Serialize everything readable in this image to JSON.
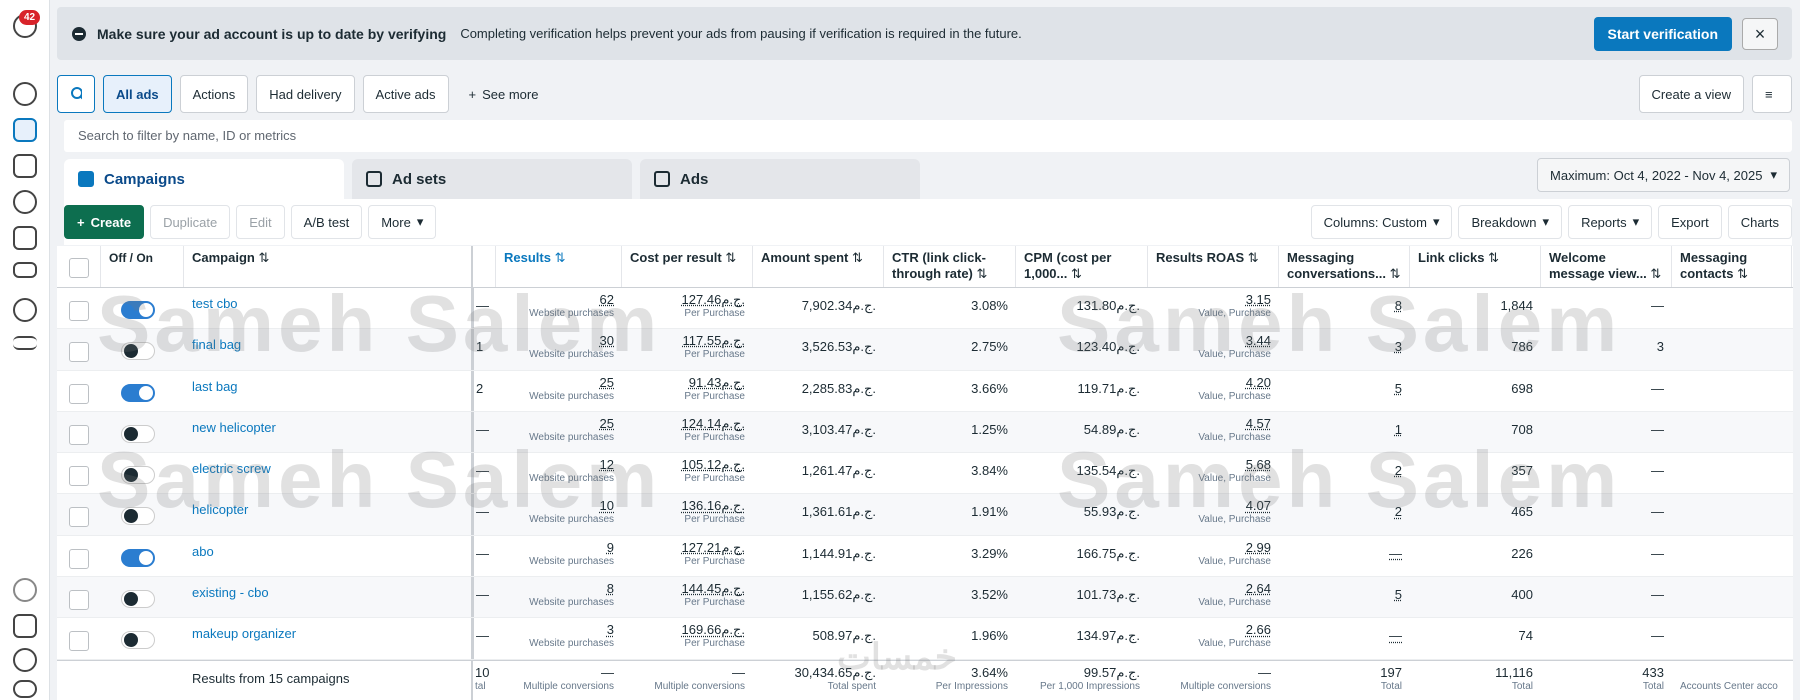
{
  "sidebar": {
    "badge": "42"
  },
  "banner": {
    "title": "Make sure your ad account is up to date by verifying",
    "text": "Completing verification helps prevent your ads from pausing if verification is required in the future.",
    "button": "Start verification"
  },
  "toolbar": {
    "filters": [
      "All ads",
      "Actions",
      "Had delivery",
      "Active ads"
    ],
    "see_more": "See more",
    "create_view": "Create a view"
  },
  "search": {
    "placeholder": "Search to filter by name, ID or metrics"
  },
  "tabs": [
    "Campaigns",
    "Ad sets",
    "Ads"
  ],
  "date_range": "Maximum: Oct 4, 2022 - Nov 4, 2025",
  "actions": {
    "left": [
      "Create",
      "Duplicate",
      "Edit",
      "A/B test",
      "More"
    ],
    "right": [
      "Columns: Custom",
      "Breakdown",
      "Reports",
      "Export",
      "Charts"
    ]
  },
  "watermark": "Sameh Salem",
  "watermark2": "خمسات",
  "table": {
    "headers": [
      "Off / On",
      "Campaign",
      "Results",
      "Cost per result",
      "Amount spent",
      "CTR (link click-through rate)",
      "CPM (cost per 1,000...",
      "Results ROAS",
      "Messaging conversations...",
      "Link clicks",
      "Welcome message view...",
      "Messaging contacts"
    ],
    "result_label": "Website purchases",
    "cost_label": "Per Purchase",
    "roas_label": "Value, Purchase",
    "rows": [
      {
        "name": "test cbo",
        "on": true,
        "cells": [
          "—",
          "62",
          "127.46ج.م.",
          "7,902.34ج.م.",
          "3.08%",
          "131.80ج.م.",
          "3.15",
          "8",
          "1,844",
          "—"
        ]
      },
      {
        "name": "final bag",
        "on": false,
        "cells": [
          "1",
          "30",
          "117.55ج.م.",
          "3,526.53ج.م.",
          "2.75%",
          "123.40ج.م.",
          "3.44",
          "3",
          "786",
          "3"
        ]
      },
      {
        "name": "last bag",
        "on": true,
        "cells": [
          "2",
          "25",
          "91.43ج.م.",
          "2,285.83ج.م.",
          "3.66%",
          "119.71ج.م.",
          "4.20",
          "5",
          "698",
          "—"
        ]
      },
      {
        "name": "new helicopter",
        "on": false,
        "cells": [
          "—",
          "25",
          "124.14ج.م.",
          "3,103.47ج.م.",
          "1.25%",
          "54.89ج.م.",
          "4.57",
          "1",
          "708",
          "—"
        ]
      },
      {
        "name": "electric screw",
        "on": false,
        "cells": [
          "—",
          "12",
          "105.12ج.م.",
          "1,261.47ج.م.",
          "3.84%",
          "135.54ج.م.",
          "5.68",
          "2",
          "357",
          "—"
        ]
      },
      {
        "name": "helicopter",
        "on": false,
        "cells": [
          "—",
          "10",
          "136.16ج.م.",
          "1,361.61ج.م.",
          "1.91%",
          "55.93ج.م.",
          "4.07",
          "2",
          "465",
          "—"
        ]
      },
      {
        "name": "abo",
        "on": true,
        "cells": [
          "—",
          "9",
          "127.21ج.م.",
          "1,144.91ج.م.",
          "3.29%",
          "166.75ج.م.",
          "2.99",
          "—",
          "226",
          "—"
        ]
      },
      {
        "name": "existing - cbo",
        "on": false,
        "cells": [
          "—",
          "8",
          "144.45ج.م.",
          "1,155.62ج.م.",
          "3.52%",
          "101.73ج.م.",
          "2.64",
          "5",
          "400",
          "—"
        ]
      },
      {
        "name": "makeup organizer",
        "on": false,
        "cells": [
          "—",
          "3",
          "169.66ج.م.",
          "508.97ج.م.",
          "1.96%",
          "134.97ج.م.",
          "2.66",
          "—",
          "74",
          "—"
        ]
      }
    ],
    "footer": {
      "label": "Results from 15 campaigns",
      "cells": [
        {
          "v": "10",
          "s": "tal"
        },
        {
          "v": "—",
          "s": "Multiple conversions"
        },
        {
          "v": "—",
          "s": "Multiple conversions"
        },
        {
          "v": "30,434.65ج.م.",
          "s": "Total spent"
        },
        {
          "v": "3.64%",
          "s": "Per Impressions"
        },
        {
          "v": "99.57ج.م.",
          "s": "Per 1,000 Impressions"
        },
        {
          "v": "—",
          "s": "Multiple conversions"
        },
        {
          "v": "197",
          "s": "Total"
        },
        {
          "v": "11,116",
          "s": "Total"
        },
        {
          "v": "433",
          "s": "Total"
        },
        {
          "s": "Accounts Center acco"
        }
      ]
    }
  }
}
